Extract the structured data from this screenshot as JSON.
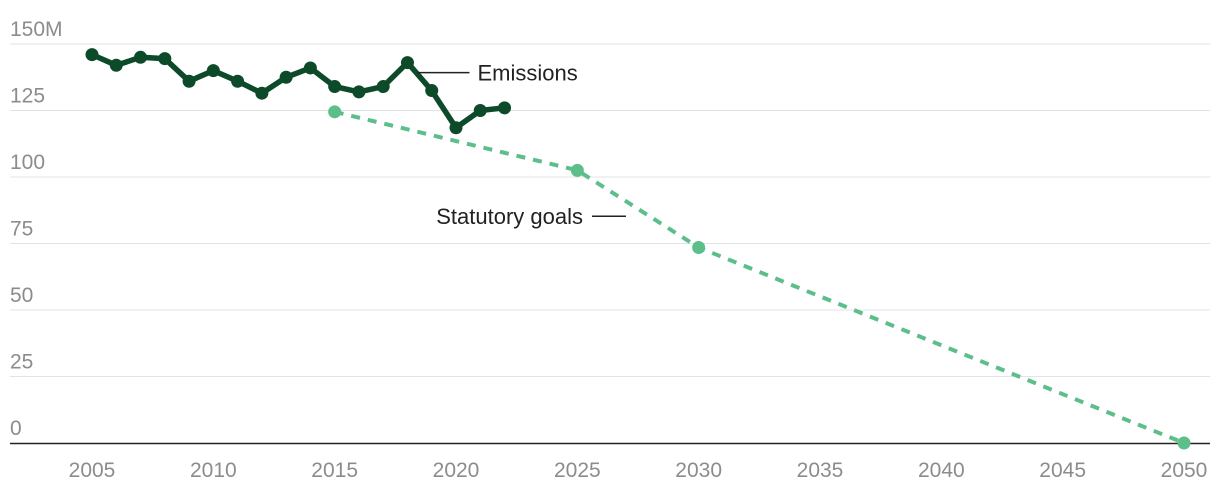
{
  "chart_data": {
    "type": "line",
    "title": "",
    "xlabel": "",
    "ylabel": "",
    "xlim": [
      2005,
      2050
    ],
    "ylim": [
      0,
      150
    ],
    "x_ticks": [
      2005,
      2010,
      2015,
      2020,
      2025,
      2030,
      2035,
      2040,
      2045,
      2050
    ],
    "y_ticks": [
      0,
      25,
      50,
      75,
      100,
      125,
      150
    ],
    "y_tick_labels": [
      "0",
      "25",
      "50",
      "75",
      "100",
      "125",
      "150M"
    ],
    "grid": "horizontal",
    "legend": "inline labels",
    "series": [
      {
        "name": "Emissions",
        "color": "#0c4a2a",
        "style": "solid",
        "x": [
          2005,
          2006,
          2007,
          2008,
          2009,
          2010,
          2011,
          2012,
          2013,
          2014,
          2015,
          2016,
          2017,
          2018,
          2019,
          2020,
          2021,
          2022
        ],
        "y": [
          146,
          142,
          145,
          144.5,
          136,
          140,
          136,
          131.5,
          137.5,
          141,
          134,
          132,
          134,
          143,
          132.5,
          118.5,
          125,
          126
        ]
      },
      {
        "name": "Statutory goals",
        "color": "#5cbf8a",
        "style": "dashed",
        "x": [
          2015,
          2025,
          2030,
          2050
        ],
        "y": [
          124.5,
          102.5,
          73.5,
          0
        ]
      }
    ]
  }
}
